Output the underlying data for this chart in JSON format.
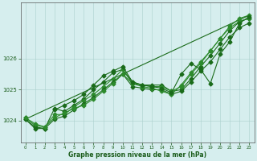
{
  "title": "",
  "xlabel": "Graphe pression niveau de la mer (hPa)",
  "background_color": "#d6eeee",
  "grid_color": "#aad0cc",
  "text_color": "#1a5c1a",
  "xlim": [
    -0.5,
    23.5
  ],
  "ylim": [
    1023.3,
    1027.8
  ],
  "yticks": [
    1024,
    1025,
    1026
  ],
  "xticks": [
    0,
    1,
    2,
    3,
    4,
    5,
    6,
    7,
    8,
    9,
    10,
    11,
    12,
    13,
    14,
    15,
    16,
    17,
    18,
    19,
    20,
    21,
    22,
    23
  ],
  "series": [
    {
      "x": [
        0,
        1,
        2,
        3,
        4,
        5,
        6,
        7,
        8,
        9,
        10,
        11,
        12,
        13,
        14,
        15,
        16,
        17,
        18,
        19,
        20,
        21,
        22,
        23
      ],
      "y": [
        1024.05,
        1023.75,
        1023.75,
        1024.4,
        1024.3,
        1024.5,
        1024.7,
        1025.0,
        1025.25,
        1025.55,
        1025.65,
        1025.2,
        1025.15,
        1025.15,
        1025.15,
        1024.95,
        1025.0,
        1025.35,
        1025.75,
        1026.1,
        1026.5,
        1026.9,
        1027.2,
        1027.3
      ],
      "marker": "D",
      "markersize": 2.5,
      "linewidth": 0.8,
      "color": "#1a6b1a"
    },
    {
      "x": [
        0,
        1,
        2,
        3,
        4,
        5,
        6,
        7,
        8,
        9,
        10,
        11,
        12,
        13,
        14,
        15,
        16,
        17,
        18,
        19,
        20,
        21,
        22,
        23
      ],
      "y": [
        1024.1,
        1023.85,
        1023.8,
        1024.2,
        1024.2,
        1024.45,
        1024.65,
        1024.85,
        1025.1,
        1025.35,
        1025.65,
        1025.25,
        1025.15,
        1025.1,
        1025.1,
        1024.95,
        1025.1,
        1025.5,
        1025.85,
        1026.25,
        1026.65,
        1027.05,
        1027.3,
        1027.4
      ],
      "marker": "D",
      "markersize": 2.5,
      "linewidth": 0.8,
      "color": "#2d8b2d"
    },
    {
      "x": [
        0,
        1,
        2,
        3,
        4,
        5,
        6,
        7,
        8,
        9,
        10,
        11,
        12,
        13,
        14,
        15,
        16,
        17,
        18,
        19,
        20,
        21,
        22,
        23
      ],
      "y": [
        1024.05,
        1023.8,
        1023.75,
        1024.05,
        1024.15,
        1024.35,
        1024.55,
        1024.75,
        1025.0,
        1025.25,
        1025.5,
        1025.1,
        1025.05,
        1025.0,
        1025.0,
        1024.85,
        1024.95,
        1025.25,
        1025.6,
        1025.9,
        1026.3,
        1026.7,
        1027.0,
        1027.15
      ],
      "marker": "D",
      "markersize": 2.5,
      "linewidth": 0.8,
      "color": "#1a6b1a"
    },
    {
      "x": [
        0,
        1,
        2,
        3,
        4,
        5,
        6,
        7,
        8,
        9,
        10,
        11,
        12,
        13,
        14,
        15,
        16,
        17,
        18,
        19,
        20,
        21,
        22,
        23
      ],
      "y": [
        1024.1,
        1023.9,
        1023.8,
        1024.1,
        1024.25,
        1024.4,
        1024.5,
        1024.7,
        1024.95,
        1025.2,
        1025.5,
        1025.2,
        1025.1,
        1025.05,
        1024.95,
        1024.85,
        1025.15,
        1025.55,
        1025.9,
        1026.25,
        1026.65,
        1027.0,
        1027.2,
        1027.3
      ],
      "marker": "D",
      "markersize": 2.5,
      "linewidth": 0.8,
      "color": "#2d8b2d"
    },
    {
      "x": [
        3,
        4,
        5,
        6,
        7,
        8,
        9,
        10,
        11,
        12,
        13,
        14,
        15,
        16,
        17,
        18,
        19,
        20,
        21,
        22,
        23
      ],
      "y": [
        1024.35,
        1024.5,
        1024.65,
        1024.85,
        1025.15,
        1025.45,
        1025.6,
        1025.75,
        1025.25,
        1025.15,
        1025.1,
        1025.05,
        1024.9,
        1025.5,
        1025.85,
        1025.65,
        1025.2,
        1026.15,
        1026.55,
        1027.15,
        1027.35
      ],
      "marker": "D",
      "markersize": 2.5,
      "linewidth": 0.8,
      "color": "#1a6b1a"
    }
  ],
  "straight_line": {
    "x": [
      0,
      23
    ],
    "y": [
      1024.05,
      1027.4
    ],
    "color": "#1a6b1a",
    "linewidth": 0.8,
    "linestyle": "-"
  }
}
